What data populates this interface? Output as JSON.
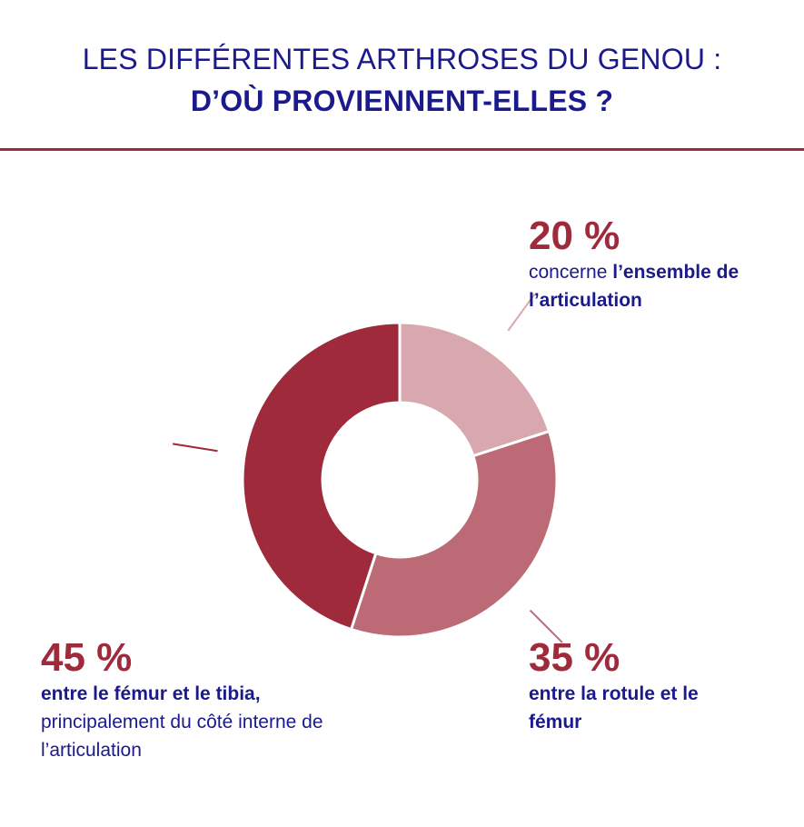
{
  "title": {
    "line1": "LES DIFFÉRENTES ARTHROSES DU GENOU :",
    "line2": "D’OÙ PROVIENNENT-ELLES ?"
  },
  "colors": {
    "title": "#1a1a8c",
    "accent": "#9e2a3b"
  },
  "chart_data": {
    "type": "pie",
    "donut": true,
    "start_angle_deg": 0,
    "direction": "clockwise",
    "slices": [
      {
        "value": 20,
        "label": "20 %",
        "color": "#d9a8af",
        "text_plain": "concerne ",
        "text_bold": "l’ensemble de l’articulation"
      },
      {
        "value": 35,
        "label": "35 %",
        "color": "#bc6a75",
        "text_plain": "",
        "text_bold": "entre la rotule et le fémur"
      },
      {
        "value": 45,
        "label": "45 %",
        "color": "#9e2a3b",
        "text_bold": "entre le fémur et le tibia,",
        "text_plain": "principalement du côté interne de l’articulation"
      }
    ]
  }
}
